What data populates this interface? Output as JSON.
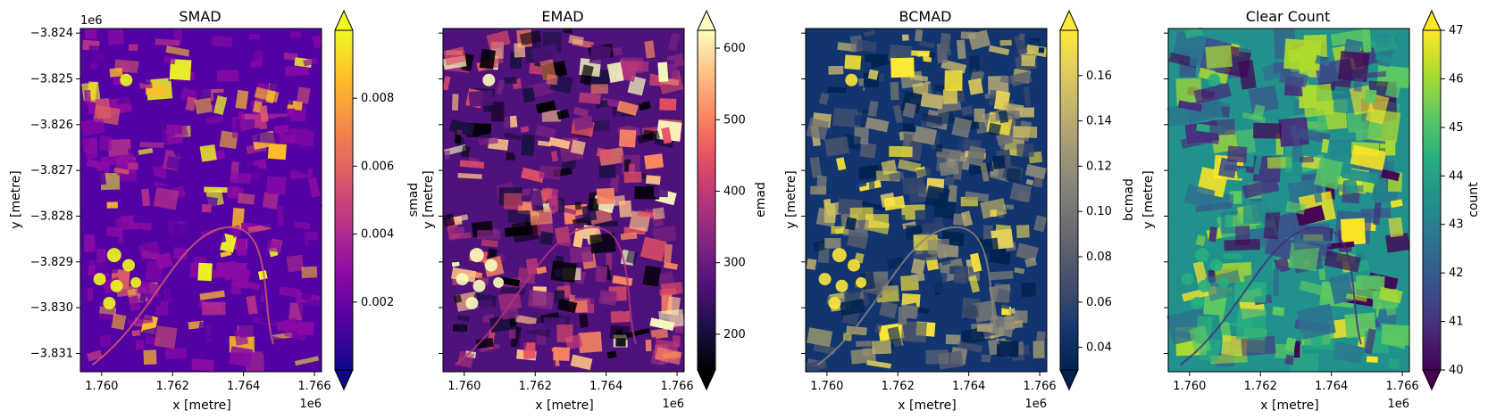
{
  "chart_data": [
    {
      "type": "heatmap",
      "title": "SMAD",
      "xlabel": "x [metre]",
      "ylabel": "y [metre]",
      "x_ticks": [
        "1.760",
        "1.762",
        "1.764",
        "1.766"
      ],
      "x_tick_values": [
        1.76,
        1.762,
        1.764,
        1.766
      ],
      "x_offset": "1e6",
      "y_ticks": [
        "−3.824",
        "−3.825",
        "−3.826",
        "−3.827",
        "−3.828",
        "−3.829",
        "−3.830",
        "−3.831"
      ],
      "y_tick_values": [
        -3.824,
        -3.825,
        -3.826,
        -3.827,
        -3.828,
        -3.829,
        -3.83,
        -3.831
      ],
      "y_offset": "1e6",
      "show_y_tick_labels": true,
      "xlim": [
        1.7594,
        1.7662
      ],
      "ylim": [
        -3.8314,
        -3.8239
      ],
      "colorbar": {
        "label": "smad",
        "cmap": "plasma",
        "ticks": [
          "0.002",
          "0.004",
          "0.006",
          "0.008"
        ],
        "tick_values": [
          0.002,
          0.004,
          0.006,
          0.008
        ],
        "range": [
          0.0,
          0.01
        ],
        "extend": "both"
      }
    },
    {
      "type": "heatmap",
      "title": "EMAD",
      "xlabel": "x [metre]",
      "ylabel": "y [metre]",
      "x_ticks": [
        "1.760",
        "1.762",
        "1.764",
        "1.766"
      ],
      "x_tick_values": [
        1.76,
        1.762,
        1.764,
        1.766
      ],
      "x_offset": "1e6",
      "y_tick_values": [
        -3.824,
        -3.825,
        -3.826,
        -3.827,
        -3.828,
        -3.829,
        -3.83,
        -3.831
      ],
      "show_y_tick_labels": false,
      "xlim": [
        1.7594,
        1.7662
      ],
      "ylim": [
        -3.8314,
        -3.8239
      ],
      "colorbar": {
        "label": "emad",
        "cmap": "magma",
        "ticks": [
          "200",
          "300",
          "400",
          "500",
          "600"
        ],
        "tick_values": [
          200,
          300,
          400,
          500,
          600
        ],
        "range": [
          150,
          625
        ],
        "extend": "both"
      }
    },
    {
      "type": "heatmap",
      "title": "BCMAD",
      "xlabel": "x [metre]",
      "ylabel": "y [metre]",
      "x_ticks": [
        "1.760",
        "1.762",
        "1.764",
        "1.766"
      ],
      "x_tick_values": [
        1.76,
        1.762,
        1.764,
        1.766
      ],
      "x_offset": "1e6",
      "y_tick_values": [
        -3.824,
        -3.825,
        -3.826,
        -3.827,
        -3.828,
        -3.829,
        -3.83,
        -3.831
      ],
      "show_y_tick_labels": false,
      "xlim": [
        1.7594,
        1.7662
      ],
      "ylim": [
        -3.8314,
        -3.8239
      ],
      "colorbar": {
        "label": "bcmad",
        "cmap": "cividis",
        "ticks": [
          "0.04",
          "0.06",
          "0.08",
          "0.10",
          "0.12",
          "0.14",
          "0.16"
        ],
        "tick_values": [
          0.04,
          0.06,
          0.08,
          0.1,
          0.12,
          0.14,
          0.16
        ],
        "range": [
          0.03,
          0.18
        ],
        "extend": "both"
      }
    },
    {
      "type": "heatmap",
      "title": "Clear Count",
      "xlabel": "x [metre]",
      "ylabel": "y [metre]",
      "x_ticks": [
        "1.760",
        "1.762",
        "1.764",
        "1.766"
      ],
      "x_tick_values": [
        1.76,
        1.762,
        1.764,
        1.766
      ],
      "x_offset": "1e6",
      "y_tick_values": [
        -3.824,
        -3.825,
        -3.826,
        -3.827,
        -3.828,
        -3.829,
        -3.83,
        -3.831
      ],
      "show_y_tick_labels": false,
      "xlim": [
        1.7594,
        1.7662
      ],
      "ylim": [
        -3.8314,
        -3.8239
      ],
      "colorbar": {
        "label": "count",
        "cmap": "viridis",
        "ticks": [
          "40",
          "41",
          "42",
          "43",
          "44",
          "45",
          "46",
          "47"
        ],
        "tick_values": [
          40,
          41,
          42,
          43,
          44,
          45,
          46,
          47
        ],
        "range": [
          40,
          47
        ],
        "extend": "both"
      }
    }
  ],
  "colormaps": {
    "plasma": [
      "#0d0887",
      "#5302a3",
      "#8b0aa5",
      "#b83289",
      "#db5c68",
      "#f48849",
      "#febd2a",
      "#f0f921"
    ],
    "magma": [
      "#000004",
      "#1c1044",
      "#4f127b",
      "#812581",
      "#b5367a",
      "#e55064",
      "#fb8761",
      "#fec287",
      "#fcfdbf"
    ],
    "cividis": [
      "#00224e",
      "#123570",
      "#3b496c",
      "#575d6d",
      "#707173",
      "#8a8779",
      "#a69d75",
      "#c4b56c",
      "#e4cf5b",
      "#fee838"
    ],
    "viridis": [
      "#440154",
      "#472d7b",
      "#3b528b",
      "#2c728e",
      "#21918c",
      "#28ae80",
      "#5ec962",
      "#addc30",
      "#fde725"
    ]
  }
}
